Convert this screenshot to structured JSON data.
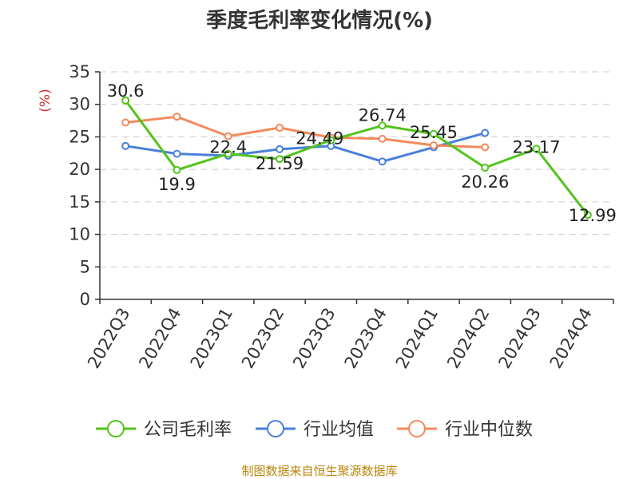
{
  "chart_data": {
    "type": "line",
    "title": "季度毛利率变化情况(%)",
    "ylabel": "(%)",
    "xlabel": "",
    "ylim": [
      0,
      35
    ],
    "yticks": [
      0,
      5,
      10,
      15,
      20,
      25,
      30,
      35
    ],
    "grid": true,
    "legend_position": "bottom",
    "categories": [
      "2022Q3",
      "2022Q4",
      "2023Q1",
      "2023Q2",
      "2023Q3",
      "2023Q4",
      "2024Q1",
      "2024Q2",
      "2024Q3",
      "2024Q4"
    ],
    "series": [
      {
        "name": "公司毛利率",
        "color": "#52c41a",
        "values": [
          30.6,
          19.9,
          22.4,
          21.59,
          24.49,
          26.74,
          25.45,
          20.26,
          23.17,
          12.99
        ],
        "labels": [
          "30.6",
          "19.9",
          "22.4",
          "21.59",
          "24.49",
          "26.74",
          "25.45",
          "20.26",
          "23.17",
          "12.99"
        ]
      },
      {
        "name": "行业均值",
        "color": "#4a7fdc",
        "values": [
          23.6,
          22.4,
          22.1,
          23.1,
          23.6,
          21.2,
          23.4,
          25.6,
          null,
          null
        ]
      },
      {
        "name": "行业中位数",
        "color": "#f38a5c",
        "values": [
          27.2,
          28.1,
          25.1,
          26.4,
          24.9,
          24.7,
          23.7,
          23.4,
          null,
          null
        ]
      }
    ]
  },
  "footer": {
    "source": "制图数据来自恒生聚源数据库"
  }
}
